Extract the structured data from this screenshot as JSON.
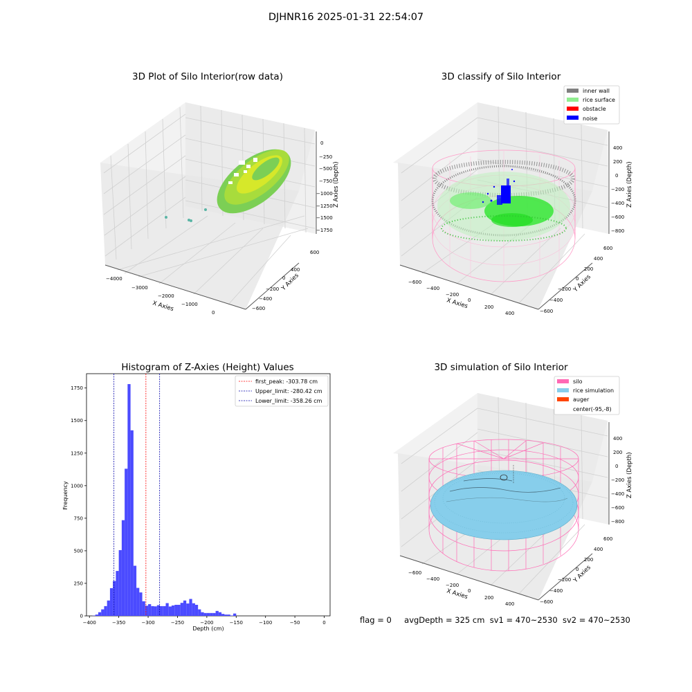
{
  "suptitle": "DJHNR16 2025-01-31 22:54:07",
  "status": {
    "flag": "flag = 0",
    "avg_depth": "avgDepth = 325 cm",
    "sv1": "sv1 = 470~2530",
    "sv2": "sv2 = 470~2530"
  },
  "colors": {
    "inner_wall": "#808080",
    "rice_surface": "#90ee90",
    "obstacle": "#ff0000",
    "noise": "#0000ff",
    "silo": "#ff69b4",
    "rice_simulation": "#87ceeb",
    "auger": "#ff4500",
    "hist_bar": "#4b4bff"
  },
  "chart_data": [
    {
      "type": "scatter",
      "title": "3D Plot of Silo Interior(row data)",
      "xlabel": "X Axies",
      "ylabel": "Y Axies",
      "zlabel": "Z Axies (Depth)",
      "x_ticks": [
        "−4000",
        "−3000",
        "−2000",
        "−1000",
        "0"
      ],
      "y_ticks": [
        "600",
        "400",
        "200",
        "0",
        "−200",
        "−400",
        "−600"
      ],
      "z_ticks": [
        "0",
        "−250",
        "−500",
        "−750",
        "−1000",
        "−1250",
        "−1500",
        "−1750"
      ]
    },
    {
      "type": "scatter",
      "title": "3D classify of Silo Interior",
      "xlabel": "X Axies",
      "ylabel": "Y Axies",
      "zlabel": "Z Axies (Depth)",
      "x_ticks": [
        "−600",
        "−400",
        "−200",
        "0",
        "200",
        "400"
      ],
      "y_ticks": [
        "600",
        "400",
        "200",
        "0",
        "−200",
        "−400",
        "−600"
      ],
      "z_ticks": [
        "400",
        "200",
        "0",
        "−200",
        "−400",
        "−600",
        "−800"
      ],
      "legend": [
        "inner wall",
        "rice surface",
        "obstacle",
        "noise"
      ],
      "legend_position": "top-right"
    },
    {
      "type": "bar",
      "title": "Histogram of Z-Axies (Height) Values",
      "xlabel": "Depth (cm)",
      "ylabel": "Frequency",
      "xlim": [
        -405,
        10
      ],
      "ylim": [
        0,
        1860
      ],
      "x_ticks": [
        "−400",
        "−350",
        "−300",
        "−250",
        "−200",
        "−150",
        "−100",
        "−50",
        "0"
      ],
      "x_tick_values": [
        -400,
        -350,
        -300,
        -250,
        -200,
        -150,
        -100,
        -50,
        0
      ],
      "y_ticks": [
        "0",
        "250",
        "500",
        "750",
        "1000",
        "1250",
        "1500",
        "1750"
      ],
      "y_tick_values": [
        0,
        250,
        500,
        750,
        1000,
        1250,
        1500,
        1750
      ],
      "bin_start": -400,
      "bin_width": 5,
      "values": [
        0,
        2,
        10,
        28,
        50,
        75,
        118,
        213,
        268,
        345,
        505,
        735,
        1130,
        1780,
        1425,
        385,
        215,
        180,
        112,
        78,
        90,
        75,
        73,
        82,
        75,
        75,
        98,
        72,
        80,
        85,
        85,
        100,
        118,
        95,
        130,
        97,
        85,
        50,
        28,
        22,
        22,
        22,
        22,
        38,
        28,
        15,
        10,
        10,
        3,
        18,
        0
      ],
      "lines": [
        {
          "label": "first_peak: -303.78 cm",
          "value": -303.78,
          "color": "#ff0000"
        },
        {
          "label": "Upper_limit: -280.42 cm",
          "value": -280.42,
          "color": "#0000aa"
        },
        {
          "label": "Lower_limit: -358.26 cm",
          "value": -358.26,
          "color": "#0000aa"
        }
      ],
      "legend_position": "top-right"
    },
    {
      "type": "scatter",
      "title": "3D simulation of Silo Interior",
      "xlabel": "X Axies",
      "ylabel": "Y Axies",
      "zlabel": "Z Axies (Depth)",
      "x_ticks": [
        "−600",
        "−400",
        "−200",
        "0",
        "200",
        "400"
      ],
      "y_ticks": [
        "600",
        "400",
        "200",
        "0",
        "−200",
        "−400",
        "−600"
      ],
      "z_ticks": [
        "400",
        "200",
        "0",
        "−200",
        "−400",
        "−600",
        "−800"
      ],
      "legend": [
        "silo",
        "rice simulation",
        "auger",
        "center(-95,-8)"
      ],
      "legend_position": "top-right"
    }
  ]
}
